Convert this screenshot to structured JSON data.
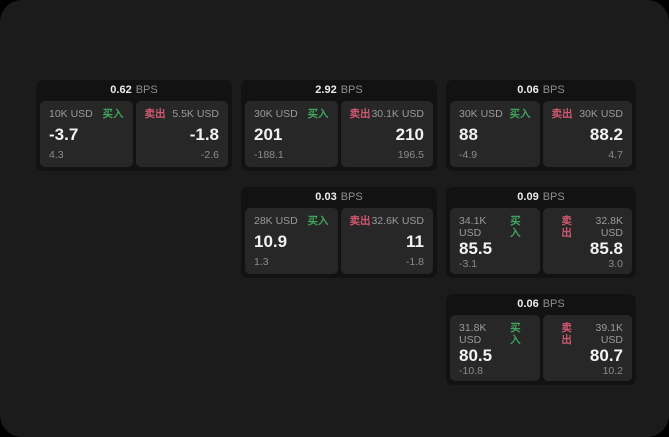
{
  "labels": {
    "bps_unit": "BPS",
    "buy": "买入",
    "sell": "卖出"
  },
  "colors": {
    "page_background": "#000000",
    "panel_background": "#1b1b1b",
    "card_background": "#121212",
    "tile_background": "#272727",
    "buy_green": "#3fa35e",
    "sell_red": "#cf5870",
    "value_text": "#f2f2f2",
    "muted_text": "#9a9a9a"
  },
  "cards": [
    {
      "row": 1,
      "col": 1,
      "bps": "0.62",
      "buy": {
        "amount": "10K USD",
        "value": "-3.7",
        "sub": "4.3"
      },
      "sell": {
        "amount": "5.5K USD",
        "value": "-1.8",
        "sub": "-2.6"
      }
    },
    {
      "row": 1,
      "col": 2,
      "bps": "2.92",
      "buy": {
        "amount": "30K USD",
        "value": "201",
        "sub": "-188.1"
      },
      "sell": {
        "amount": "30.1K USD",
        "value": "210",
        "sub": "196.5"
      }
    },
    {
      "row": 1,
      "col": 3,
      "bps": "0.06",
      "buy": {
        "amount": "30K USD",
        "value": "88",
        "sub": "-4.9"
      },
      "sell": {
        "amount": "30K USD",
        "value": "88.2",
        "sub": "4.7"
      }
    },
    {
      "row": 2,
      "col": 2,
      "bps": "0.03",
      "buy": {
        "amount": "28K USD",
        "value": "10.9",
        "sub": "1.3"
      },
      "sell": {
        "amount": "32.6K USD",
        "value": "11",
        "sub": "-1.8"
      }
    },
    {
      "row": 2,
      "col": 3,
      "bps": "0.09",
      "buy": {
        "amount": "34.1K USD",
        "value": "85.5",
        "sub": "-3.1"
      },
      "sell": {
        "amount": "32.8K USD",
        "value": "85.8",
        "sub": "3.0"
      }
    },
    {
      "row": 3,
      "col": 3,
      "bps": "0.06",
      "buy": {
        "amount": "31.8K USD",
        "value": "80.5",
        "sub": "-10.8"
      },
      "sell": {
        "amount": "39.1K USD",
        "value": "80.7",
        "sub": "10.2"
      }
    }
  ]
}
